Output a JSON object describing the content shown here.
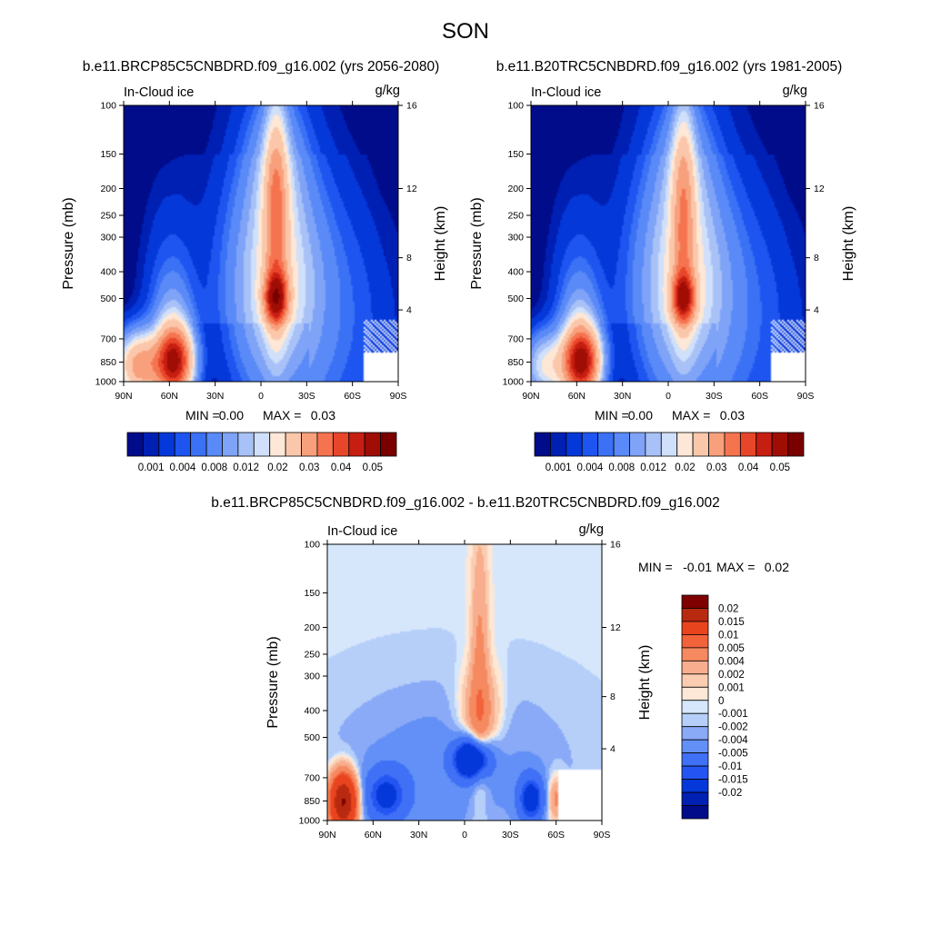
{
  "page": {
    "title": "SON"
  },
  "colors": {
    "cloud_levels": [
      "#000c8a",
      "#001fb3",
      "#0538d9",
      "#1e55f0",
      "#3b71f5",
      "#5a8af7",
      "#7fa3f7",
      "#a8c2f7",
      "#d0e0fb",
      "#fde7d6",
      "#fbc7aa",
      "#f8a07c",
      "#f5744f",
      "#e8462a",
      "#c71e12",
      "#a00d05",
      "#7a0000"
    ],
    "diff_levels": [
      "#000c8a",
      "#001fb3",
      "#0538d9",
      "#2455f2",
      "#3f70f5",
      "#6290f6",
      "#8aaaf7",
      "#b5cff9",
      "#d6e7fc",
      "#fde7d6",
      "#fbcdb0",
      "#f8ae8e",
      "#f5895f",
      "#f2623b",
      "#e8441e",
      "#b82a10",
      "#7e0000"
    ]
  },
  "chart_data": [
    {
      "type": "heatmap",
      "title": "b.e11.BRCP85C5CNBDRD.f09_g16.002 (yrs 2056-2080)",
      "left_label": "In-Cloud ice",
      "units": "g/kg",
      "xlabel": "",
      "ylabel": "Pressure (mb)",
      "ylabel_right": "Height (km)",
      "x_ticks": [
        "90N",
        "60N",
        "30N",
        "0",
        "30S",
        "60S",
        "90S"
      ],
      "y_ticks": [
        "100",
        "150",
        "200",
        "250",
        "300",
        "400",
        "500",
        "700",
        "850",
        "1000"
      ],
      "y_ticks_right": [
        "16",
        "12",
        "8",
        "4"
      ],
      "min_label": "MIN =",
      "min_value": "0.00",
      "max_label": "MAX =",
      "max_value": "0.03",
      "colorbar_labels": [
        "0.001",
        "0.004",
        "0.008",
        "0.012",
        "0.02",
        "0.03",
        "0.04",
        "0.05"
      ],
      "bottom_floor_scale": 1.0,
      "features": [
        {
          "lat": -10,
          "p": 500,
          "amp": 0.03,
          "slat": 5,
          "sz": 0.06
        },
        {
          "lat": -10,
          "p": 250,
          "amp": 0.016,
          "slat": 5,
          "sz": 0.28
        },
        {
          "lat": -10,
          "p": 450,
          "amp": 0.012,
          "slat": 20,
          "sz": 0.28
        },
        {
          "lat": -10,
          "p": 170,
          "amp": 0.006,
          "slat": 12,
          "sz": 0.18
        },
        {
          "lat": 80,
          "p": 880,
          "amp": 0.022,
          "slat": 10,
          "sz": 0.08
        },
        {
          "lat": 57,
          "p": 850,
          "amp": 0.03,
          "slat": 8,
          "sz": 0.08
        },
        {
          "lat": 58,
          "p": 800,
          "amp": 0.01,
          "slat": 8,
          "sz": 0.15
        },
        {
          "lat": 60,
          "p": 600,
          "amp": 0.003,
          "slat": 12,
          "sz": 0.3
        },
        {
          "lat": -55,
          "p": 560,
          "amp": 0.002,
          "slat": 25,
          "sz": 0.3
        }
      ]
    },
    {
      "type": "heatmap",
      "title": "b.e11.B20TRC5CNBDRD.f09_g16.002 (yrs 1981-2005)",
      "left_label": "In-Cloud ice",
      "units": "g/kg",
      "xlabel": "",
      "ylabel": "Pressure (mb)",
      "ylabel_right": "Height (km)",
      "x_ticks": [
        "90N",
        "60N",
        "30N",
        "0",
        "30S",
        "60S",
        "90S"
      ],
      "y_ticks": [
        "100",
        "150",
        "200",
        "250",
        "300",
        "400",
        "500",
        "700",
        "850",
        "1000"
      ],
      "y_ticks_right": [
        "16",
        "12",
        "8",
        "4"
      ],
      "min_label": "MIN =",
      "min_value": "0.00",
      "max_label": "MAX =",
      "max_value": "0.03",
      "colorbar_labels": [
        "0.001",
        "0.004",
        "0.008",
        "0.012",
        "0.02",
        "0.03",
        "0.04",
        "0.05"
      ],
      "bottom_floor_scale": 1.0,
      "features": [
        {
          "lat": -10,
          "p": 500,
          "amp": 0.026,
          "slat": 5,
          "sz": 0.06
        },
        {
          "lat": -10,
          "p": 250,
          "amp": 0.014,
          "slat": 5,
          "sz": 0.28
        },
        {
          "lat": -10,
          "p": 450,
          "amp": 0.012,
          "slat": 20,
          "sz": 0.28
        },
        {
          "lat": -10,
          "p": 170,
          "amp": 0.005,
          "slat": 12,
          "sz": 0.18
        },
        {
          "lat": 80,
          "p": 880,
          "amp": 0.012,
          "slat": 10,
          "sz": 0.08
        },
        {
          "lat": 57,
          "p": 850,
          "amp": 0.032,
          "slat": 8,
          "sz": 0.08
        },
        {
          "lat": 58,
          "p": 800,
          "amp": 0.01,
          "slat": 8,
          "sz": 0.15
        },
        {
          "lat": 60,
          "p": 600,
          "amp": 0.003,
          "slat": 12,
          "sz": 0.3
        },
        {
          "lat": -55,
          "p": 560,
          "amp": 0.002,
          "slat": 25,
          "sz": 0.3
        }
      ]
    },
    {
      "type": "heatmap",
      "title": "b.e11.BRCP85C5CNBDRD.f09_g16.002 - b.e11.B20TRC5CNBDRD.f09_g16.002",
      "left_label": "In-Cloud ice",
      "units": "g/kg",
      "xlabel": "",
      "ylabel": "Pressure (mb)",
      "ylabel_right": "Height (km)",
      "x_ticks": [
        "90N",
        "60N",
        "30N",
        "0",
        "30S",
        "60S",
        "90S"
      ],
      "y_ticks": [
        "100",
        "150",
        "200",
        "250",
        "300",
        "400",
        "500",
        "700",
        "850",
        "1000"
      ],
      "y_ticks_right": [
        "16",
        "12",
        "8",
        "4"
      ],
      "min_label": "MIN =",
      "min_value": "-0.01",
      "max_label": "MAX =",
      "max_value": "0.02",
      "colorbar_labels": [
        "0.02",
        "0.015",
        "0.01",
        "0.005",
        "0.004",
        "0.002",
        "0.001",
        "0",
        "-0.001",
        "-0.002",
        "-0.004",
        "-0.005",
        "-0.01",
        "-0.015",
        "-0.02"
      ],
      "features": [
        {
          "lat": -10,
          "p": 300,
          "amp": 0.0025,
          "slat": 4,
          "sz": 0.35
        },
        {
          "lat": -10,
          "p": 420,
          "amp": 0.003,
          "slat": 10,
          "sz": 0.12
        },
        {
          "lat": 80,
          "p": 860,
          "amp": 0.016,
          "slat": 6,
          "sz": 0.07
        },
        {
          "lat": -60,
          "p": 840,
          "amp": 0.003,
          "slat": 4,
          "sz": 0.06
        },
        {
          "lat": -5,
          "p": 600,
          "amp": -0.01,
          "slat": 8,
          "sz": 0.05
        },
        {
          "lat": 52,
          "p": 820,
          "amp": -0.005,
          "slat": 10,
          "sz": 0.07
        },
        {
          "lat": -44,
          "p": 840,
          "amp": -0.006,
          "slat": 6,
          "sz": 0.06
        },
        {
          "lat": 10,
          "p": 650,
          "amp": -0.0015,
          "slat": 55,
          "sz": 0.22
        }
      ]
    }
  ]
}
